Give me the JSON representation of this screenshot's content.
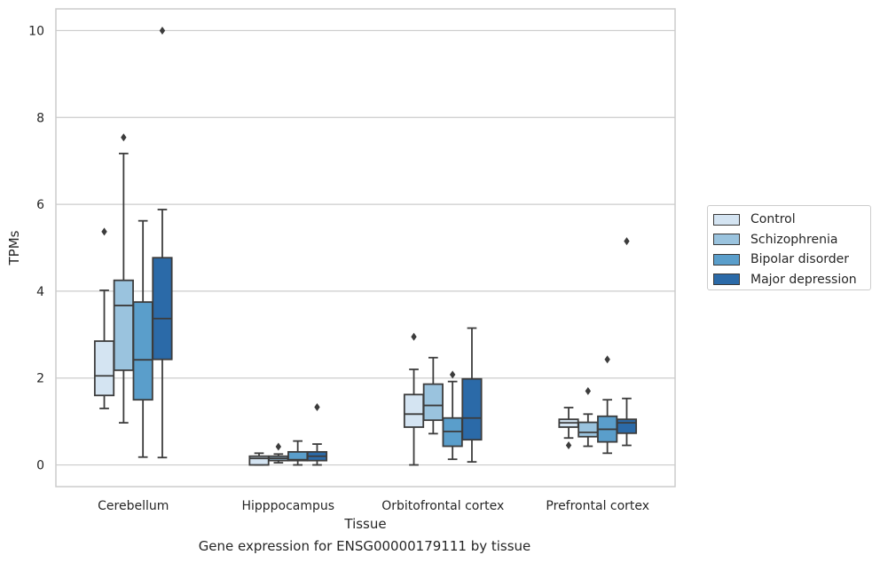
{
  "chart_data": {
    "type": "box",
    "title": "",
    "xlabel": "Tissue",
    "ylabel": "TPMs",
    "caption": "Gene expression for ENSG00000179111 by tissue",
    "ylim": [
      -0.5,
      10.5
    ],
    "yticks": [
      0,
      2,
      4,
      6,
      8,
      10
    ],
    "grid": "horizontal",
    "legend_position": "right",
    "categories": [
      "Cerebellum",
      "Hipppocampus",
      "Orbitofrontal cortex",
      "Prefrontal cortex"
    ],
    "series": [
      {
        "name": "Control",
        "color": "#d4e4f2",
        "boxes": [
          {
            "whislo": 1.3,
            "q1": 1.6,
            "med": 2.05,
            "q3": 2.85,
            "whishi": 4.02,
            "fliers": [
              5.37
            ]
          },
          {
            "whislo": 0.0,
            "q1": 0.0,
            "med": 0.15,
            "q3": 0.2,
            "whishi": 0.27,
            "fliers": []
          },
          {
            "whislo": 0.0,
            "q1": 0.87,
            "med": 1.17,
            "q3": 1.62,
            "whishi": 2.2,
            "fliers": [
              2.95
            ]
          },
          {
            "whislo": 0.62,
            "q1": 0.87,
            "med": 0.97,
            "q3": 1.05,
            "whishi": 1.32,
            "fliers": [
              0.45
            ]
          }
        ]
      },
      {
        "name": "Schizophrenia",
        "color": "#9ac3de",
        "boxes": [
          {
            "whislo": 0.97,
            "q1": 2.18,
            "med": 3.67,
            "q3": 4.25,
            "whishi": 7.17,
            "fliers": [
              7.54
            ]
          },
          {
            "whislo": 0.05,
            "q1": 0.1,
            "med": 0.15,
            "q3": 0.2,
            "whishi": 0.25,
            "fliers": [
              0.42
            ]
          },
          {
            "whislo": 0.72,
            "q1": 1.03,
            "med": 1.37,
            "q3": 1.86,
            "whishi": 2.47,
            "fliers": []
          },
          {
            "whislo": 0.43,
            "q1": 0.65,
            "med": 0.75,
            "q3": 0.98,
            "whishi": 1.17,
            "fliers": [
              1.7
            ]
          }
        ]
      },
      {
        "name": "Bipolar disorder",
        "color": "#5a9ecb",
        "boxes": [
          {
            "whislo": 0.18,
            "q1": 1.5,
            "med": 2.42,
            "q3": 3.75,
            "whishi": 5.62,
            "fliers": []
          },
          {
            "whislo": 0.0,
            "q1": 0.1,
            "med": 0.12,
            "q3": 0.3,
            "whishi": 0.55,
            "fliers": []
          },
          {
            "whislo": 0.13,
            "q1": 0.43,
            "med": 0.77,
            "q3": 1.08,
            "whishi": 1.92,
            "fliers": [
              2.08
            ]
          },
          {
            "whislo": 0.27,
            "q1": 0.53,
            "med": 0.82,
            "q3": 1.12,
            "whishi": 1.5,
            "fliers": [
              2.43
            ]
          }
        ]
      },
      {
        "name": "Major depression",
        "color": "#2b6aa8",
        "boxes": [
          {
            "whislo": 0.17,
            "q1": 2.43,
            "med": 3.37,
            "q3": 4.77,
            "whishi": 5.88,
            "fliers": [
              10.0
            ]
          },
          {
            "whislo": 0.0,
            "q1": 0.1,
            "med": 0.2,
            "q3": 0.3,
            "whishi": 0.48,
            "fliers": [
              1.33
            ]
          },
          {
            "whislo": 0.07,
            "q1": 0.58,
            "med": 1.08,
            "q3": 1.98,
            "whishi": 3.15,
            "fliers": []
          },
          {
            "whislo": 0.45,
            "q1": 0.73,
            "med": 0.97,
            "q3": 1.05,
            "whishi": 1.53,
            "fliers": [
              5.15
            ]
          }
        ]
      }
    ]
  }
}
